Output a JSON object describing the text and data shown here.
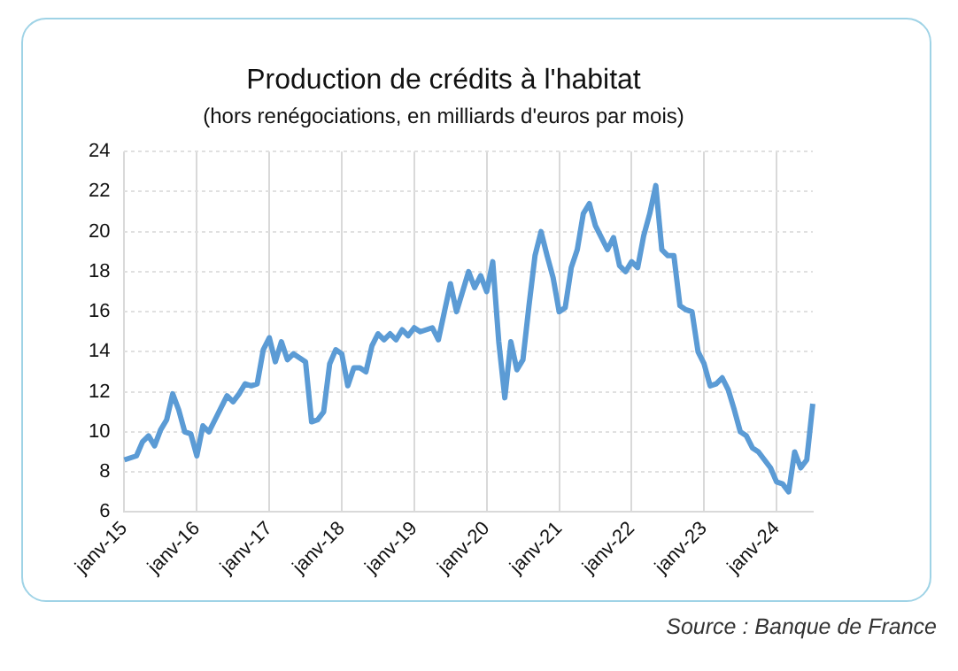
{
  "chart_data": {
    "type": "line",
    "title": "Production de crédits à l'habitat",
    "subtitle": "(hors renégociations, en milliards d'euros par mois)",
    "annotations": [
      "Source : Banque de France"
    ],
    "categories": [
      "janv-15",
      null,
      null,
      null,
      null,
      null,
      null,
      null,
      null,
      null,
      null,
      null,
      "janv-16",
      null,
      null,
      null,
      null,
      null,
      null,
      null,
      null,
      null,
      null,
      null,
      "janv-17",
      null,
      null,
      null,
      null,
      null,
      null,
      null,
      null,
      null,
      null,
      null,
      "janv-18",
      null,
      null,
      null,
      null,
      null,
      null,
      null,
      null,
      null,
      null,
      null,
      "janv-19",
      null,
      null,
      null,
      null,
      null,
      null,
      null,
      null,
      null,
      null,
      null,
      "janv-20",
      null,
      null,
      null,
      null,
      null,
      null,
      null,
      null,
      null,
      null,
      null,
      "janv-21",
      null,
      null,
      null,
      null,
      null,
      null,
      null,
      null,
      null,
      null,
      null,
      "janv-22",
      null,
      null,
      null,
      null,
      null,
      null,
      null,
      null,
      null,
      null,
      null,
      "janv-23",
      null,
      null,
      null,
      null,
      null,
      null,
      null,
      null,
      null,
      null,
      null,
      "janv-24",
      null,
      null,
      null,
      null,
      null,
      null
    ],
    "series": [
      {
        "color": "#5b9bd5",
        "values": [
          8.6,
          8.7,
          8.8,
          9.5,
          9.8,
          9.3,
          10.1,
          10.6,
          11.9,
          11.1,
          10.0,
          9.9,
          8.8,
          10.3,
          10.0,
          10.6,
          11.2,
          11.8,
          11.5,
          11.9,
          12.4,
          12.3,
          12.4,
          14.1,
          14.7,
          13.5,
          14.5,
          13.6,
          13.9,
          13.7,
          13.5,
          10.5,
          10.6,
          11.0,
          13.4,
          14.1,
          13.9,
          12.3,
          13.2,
          13.2,
          13.0,
          14.3,
          14.9,
          14.6,
          14.9,
          14.6,
          15.1,
          14.8,
          15.2,
          15.0,
          15.1,
          15.2,
          14.6,
          16.0,
          17.4,
          16.0,
          17.0,
          18.0,
          17.2,
          17.8,
          17.0,
          18.5,
          14.5,
          11.7,
          14.5,
          13.1,
          13.6,
          16.3,
          18.8,
          20.0,
          18.8,
          17.7,
          16.0,
          16.2,
          18.2,
          19.1,
          20.9,
          21.4,
          20.3,
          19.7,
          19.1,
          19.7,
          18.3,
          18.0,
          18.5,
          18.2,
          19.8,
          20.9,
          22.3,
          19.1,
          18.8,
          18.8,
          16.3,
          16.1,
          16.0,
          14.0,
          13.4,
          12.3,
          12.4,
          12.7,
          12.1,
          11.1,
          10.0,
          9.8,
          9.2,
          9.0,
          8.6,
          8.2,
          7.5,
          7.4,
          7.0,
          9.0,
          8.2,
          8.6,
          11.4
        ]
      }
    ],
    "ylim": [
      6,
      24
    ],
    "yticks": [
      6,
      8,
      10,
      12,
      14,
      16,
      18,
      20,
      22,
      24
    ],
    "grid": true,
    "legend": false,
    "marker": "none",
    "line_style": "solid"
  }
}
